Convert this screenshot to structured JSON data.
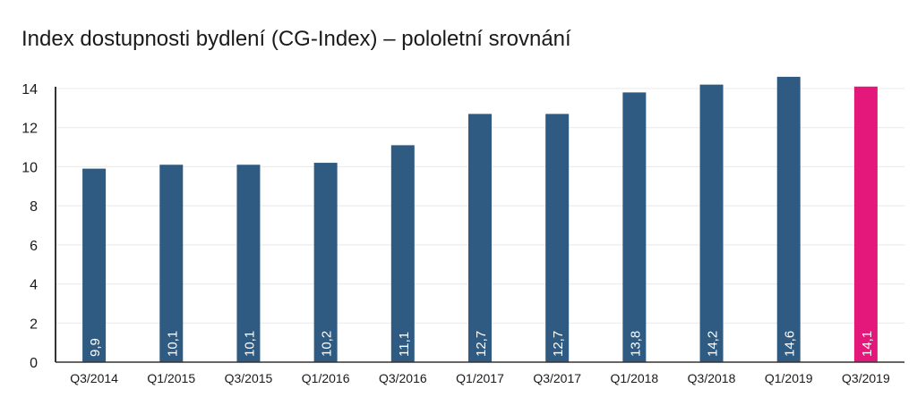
{
  "colors": {
    "bar": "#2f5b82",
    "highlight": "#e3187a",
    "axis": "#333333",
    "grid": "#e8e8e8"
  },
  "chart_data": {
    "type": "bar",
    "title": "Index dostupnosti bydlení (CG-Index) – pololetní srovnání",
    "xlabel": "",
    "ylabel": "",
    "ylim": [
      0,
      14
    ],
    "yticks": [
      0,
      2,
      4,
      6,
      8,
      10,
      12,
      14
    ],
    "grid": true,
    "legend": "none",
    "categories": [
      "Q3/2014",
      "Q1/2015",
      "Q3/2015",
      "Q1/2016",
      "Q3/2016",
      "Q1/2017",
      "Q3/2017",
      "Q1/2018",
      "Q3/2018",
      "Q1/2019",
      "Q3/2019"
    ],
    "values": [
      9.9,
      10.1,
      10.1,
      10.2,
      11.1,
      12.7,
      12.7,
      13.8,
      14.2,
      14.6,
      14.1
    ],
    "data_labels": [
      "9,9",
      "10,1",
      "10,1",
      "10,2",
      "11,1",
      "12,7",
      "12,7",
      "13,8",
      "14,2",
      "14,6",
      "14,1"
    ],
    "highlight_index": 10
  }
}
